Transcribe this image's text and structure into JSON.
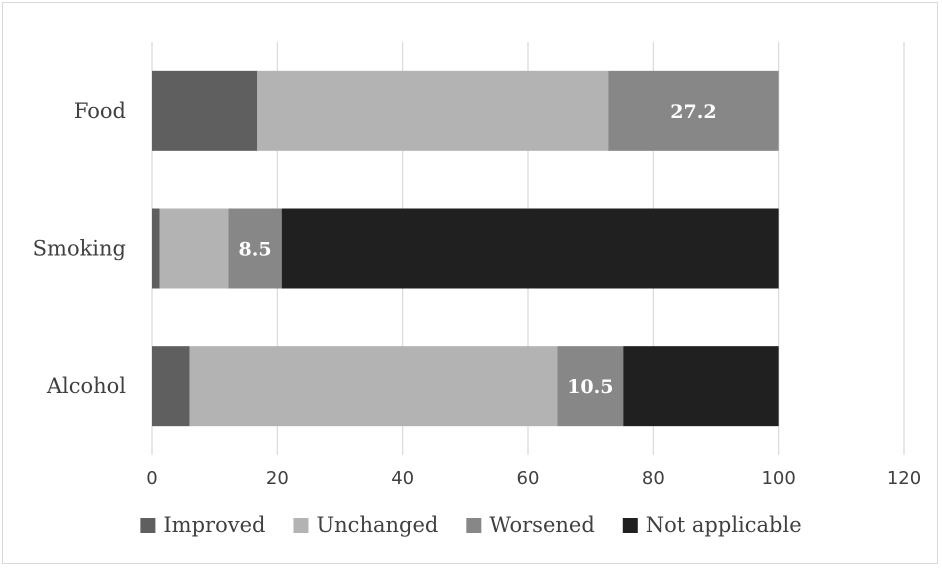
{
  "chart_data": {
    "type": "bar",
    "orientation": "horizontal",
    "stacked": true,
    "categories": [
      "Food",
      "Smoking",
      "Alcohol"
    ],
    "series": [
      {
        "name": "Improved",
        "values": [
          16.8,
          1.2,
          6.0
        ],
        "color": "#5f5f5f"
      },
      {
        "name": "Unchanged",
        "values": [
          56.0,
          11.0,
          58.7
        ],
        "color": "#b3b3b3"
      },
      {
        "name": "Worsened",
        "values": [
          27.2,
          8.5,
          10.5
        ],
        "color": "#878787"
      },
      {
        "name": "Not applicable",
        "values": [
          0,
          79.3,
          24.8
        ],
        "color": "#202020"
      }
    ],
    "data_labels": [
      {
        "category": "Food",
        "series": "Worsened",
        "text": "27.2"
      },
      {
        "category": "Smoking",
        "series": "Worsened",
        "text": "8.5"
      },
      {
        "category": "Alcohol",
        "series": "Worsened",
        "text": "10.5"
      }
    ],
    "xlim": [
      0,
      120
    ],
    "xticks": [
      0,
      20,
      40,
      60,
      80,
      100,
      120
    ],
    "grid": "vertical",
    "legend_position": "bottom",
    "title": "",
    "xlabel": "",
    "ylabel": ""
  }
}
